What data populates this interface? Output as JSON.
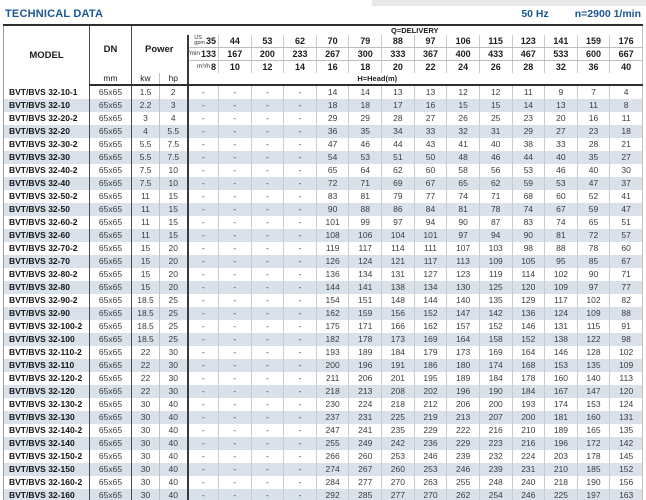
{
  "header": {
    "title": "TECHNICAL DATA",
    "frequency": "50 Hz",
    "speed": "n=2900 1/min"
  },
  "table": {
    "columns": {
      "model": "MODEL",
      "dn": "DN",
      "power": "Power",
      "delivery": "Q=DELIVERY",
      "head": "H=Head(m)",
      "dn_unit": "mm",
      "kw": "kw",
      "hp": "hp"
    },
    "units": {
      "us": "US",
      "gpm": "gpm",
      "lmin": "l/min",
      "m3h": "m³/h"
    },
    "gpm": [
      "35",
      "44",
      "53",
      "62",
      "70",
      "79",
      "88",
      "97",
      "106",
      "115",
      "123",
      "141",
      "159",
      "176"
    ],
    "lmin": [
      "133",
      "167",
      "200",
      "233",
      "267",
      "300",
      "333",
      "367",
      "400",
      "433",
      "467",
      "533",
      "600",
      "667"
    ],
    "m3h": [
      "8",
      "10",
      "12",
      "14",
      "16",
      "18",
      "20",
      "22",
      "24",
      "26",
      "28",
      "32",
      "36",
      "40"
    ],
    "rows": [
      {
        "model": "BVT/BVS 32-10-1",
        "dn": "65x65",
        "kw": "1.5",
        "hp": "2",
        "values": [
          "-",
          "-",
          "-",
          "-",
          "14",
          "14",
          "13",
          "13",
          "12",
          "12",
          "11",
          "9",
          "7",
          "4"
        ]
      },
      {
        "model": "BVT/BVS 32-10",
        "dn": "65x65",
        "kw": "2.2",
        "hp": "3",
        "values": [
          "-",
          "-",
          "-",
          "-",
          "18",
          "18",
          "17",
          "16",
          "15",
          "15",
          "14",
          "13",
          "11",
          "8"
        ]
      },
      {
        "model": "BVT/BVS 32-20-2",
        "dn": "65x65",
        "kw": "3",
        "hp": "4",
        "values": [
          "-",
          "-",
          "-",
          "-",
          "29",
          "29",
          "28",
          "27",
          "26",
          "25",
          "23",
          "20",
          "16",
          "11"
        ]
      },
      {
        "model": "BVT/BVS 32-20",
        "dn": "65x65",
        "kw": "4",
        "hp": "5.5",
        "values": [
          "-",
          "-",
          "-",
          "-",
          "36",
          "35",
          "34",
          "33",
          "32",
          "31",
          "29",
          "27",
          "23",
          "18"
        ]
      },
      {
        "model": "BVT/BVS 32-30-2",
        "dn": "65x65",
        "kw": "5.5",
        "hp": "7.5",
        "values": [
          "-",
          "-",
          "-",
          "-",
          "47",
          "46",
          "44",
          "43",
          "41",
          "40",
          "38",
          "33",
          "28",
          "21"
        ]
      },
      {
        "model": "BVT/BVS 32-30",
        "dn": "65x65",
        "kw": "5.5",
        "hp": "7.5",
        "values": [
          "-",
          "-",
          "-",
          "-",
          "54",
          "53",
          "51",
          "50",
          "48",
          "46",
          "44",
          "40",
          "35",
          "27"
        ]
      },
      {
        "model": "BVT/BVS 32-40-2",
        "dn": "65x65",
        "kw": "7.5",
        "hp": "10",
        "values": [
          "-",
          "-",
          "-",
          "-",
          "65",
          "64",
          "62",
          "60",
          "58",
          "56",
          "53",
          "46",
          "40",
          "30"
        ]
      },
      {
        "model": "BVT/BVS 32-40",
        "dn": "65x65",
        "kw": "7.5",
        "hp": "10",
        "values": [
          "-",
          "-",
          "-",
          "-",
          "72",
          "71",
          "69",
          "67",
          "65",
          "62",
          "59",
          "53",
          "47",
          "37"
        ]
      },
      {
        "model": "BVT/BVS 32-50-2",
        "dn": "65x65",
        "kw": "11",
        "hp": "15",
        "values": [
          "-",
          "-",
          "-",
          "-",
          "83",
          "81",
          "79",
          "77",
          "74",
          "71",
          "68",
          "60",
          "52",
          "41"
        ]
      },
      {
        "model": "BVT/BVS 32-50",
        "dn": "65x65",
        "kw": "11",
        "hp": "15",
        "values": [
          "-",
          "-",
          "-",
          "-",
          "90",
          "88",
          "86",
          "84",
          "81",
          "78",
          "74",
          "67",
          "59",
          "47"
        ]
      },
      {
        "model": "BVT/BVS 32-60-2",
        "dn": "65x65",
        "kw": "11",
        "hp": "15",
        "values": [
          "-",
          "-",
          "-",
          "-",
          "101",
          "99",
          "97",
          "94",
          "90",
          "87",
          "83",
          "74",
          "65",
          "51"
        ]
      },
      {
        "model": "BVT/BVS 32-60",
        "dn": "65x65",
        "kw": "11",
        "hp": "15",
        "values": [
          "-",
          "-",
          "-",
          "-",
          "108",
          "106",
          "104",
          "101",
          "97",
          "94",
          "90",
          "81",
          "72",
          "57"
        ]
      },
      {
        "model": "BVT/BVS 32-70-2",
        "dn": "65x65",
        "kw": "15",
        "hp": "20",
        "values": [
          "-",
          "-",
          "-",
          "-",
          "119",
          "117",
          "114",
          "111",
          "107",
          "103",
          "98",
          "88",
          "78",
          "60"
        ]
      },
      {
        "model": "BVT/BVS 32-70",
        "dn": "65x65",
        "kw": "15",
        "hp": "20",
        "values": [
          "-",
          "-",
          "-",
          "-",
          "126",
          "124",
          "121",
          "117",
          "113",
          "109",
          "105",
          "95",
          "85",
          "67"
        ]
      },
      {
        "model": "BVT/BVS 32-80-2",
        "dn": "65x65",
        "kw": "15",
        "hp": "20",
        "values": [
          "-",
          "-",
          "-",
          "-",
          "136",
          "134",
          "131",
          "127",
          "123",
          "119",
          "114",
          "102",
          "90",
          "71"
        ]
      },
      {
        "model": "BVT/BVS 32-80",
        "dn": "65x65",
        "kw": "15",
        "hp": "20",
        "values": [
          "-",
          "-",
          "-",
          "-",
          "144",
          "141",
          "138",
          "134",
          "130",
          "125",
          "120",
          "109",
          "97",
          "77"
        ]
      },
      {
        "model": "BVT/BVS 32-90-2",
        "dn": "65x65",
        "kw": "18.5",
        "hp": "25",
        "values": [
          "-",
          "-",
          "-",
          "-",
          "154",
          "151",
          "148",
          "144",
          "140",
          "135",
          "129",
          "117",
          "102",
          "82"
        ]
      },
      {
        "model": "BVT/BVS 32-90",
        "dn": "65x65",
        "kw": "18.5",
        "hp": "25",
        "values": [
          "-",
          "-",
          "-",
          "-",
          "162",
          "159",
          "156",
          "152",
          "147",
          "142",
          "136",
          "124",
          "109",
          "88"
        ]
      },
      {
        "model": "BVT/BVS 32-100-2",
        "dn": "65x65",
        "kw": "18.5",
        "hp": "25",
        "values": [
          "-",
          "-",
          "-",
          "-",
          "175",
          "171",
          "166",
          "162",
          "157",
          "152",
          "146",
          "131",
          "115",
          "91"
        ]
      },
      {
        "model": "BVT/BVS 32-100",
        "dn": "65x65",
        "kw": "18.5",
        "hp": "25",
        "values": [
          "-",
          "-",
          "-",
          "-",
          "182",
          "178",
          "173",
          "169",
          "164",
          "158",
          "152",
          "138",
          "122",
          "98"
        ]
      },
      {
        "model": "BVT/BVS 32-110-2",
        "dn": "65x65",
        "kw": "22",
        "hp": "30",
        "values": [
          "-",
          "-",
          "-",
          "-",
          "193",
          "189",
          "184",
          "179",
          "173",
          "169",
          "164",
          "146",
          "128",
          "102"
        ]
      },
      {
        "model": "BVT/BVS 32-110",
        "dn": "65x65",
        "kw": "22",
        "hp": "30",
        "values": [
          "-",
          "-",
          "-",
          "-",
          "200",
          "196",
          "191",
          "186",
          "180",
          "174",
          "168",
          "153",
          "135",
          "109"
        ]
      },
      {
        "model": "BVT/BVS 32-120-2",
        "dn": "65x65",
        "kw": "22",
        "hp": "30",
        "values": [
          "-",
          "-",
          "-",
          "-",
          "211",
          "206",
          "201",
          "195",
          "189",
          "184",
          "178",
          "160",
          "140",
          "113"
        ]
      },
      {
        "model": "BVT/BVS 32-120",
        "dn": "65x65",
        "kw": "22",
        "hp": "30",
        "values": [
          "-",
          "-",
          "-",
          "-",
          "218",
          "213",
          "208",
          "202",
          "196",
          "190",
          "184",
          "167",
          "147",
          "120"
        ]
      },
      {
        "model": "BVT/BVS 32-130-2",
        "dn": "65x65",
        "kw": "30",
        "hp": "40",
        "values": [
          "-",
          "-",
          "-",
          "-",
          "230",
          "224",
          "218",
          "212",
          "206",
          "200",
          "193",
          "174",
          "153",
          "124"
        ]
      },
      {
        "model": "BVT/BVS 32-130",
        "dn": "65x65",
        "kw": "30",
        "hp": "40",
        "values": [
          "-",
          "-",
          "-",
          "-",
          "237",
          "231",
          "225",
          "219",
          "213",
          "207",
          "200",
          "181",
          "160",
          "131"
        ]
      },
      {
        "model": "BVT/BVS 32-140-2",
        "dn": "65x65",
        "kw": "30",
        "hp": "40",
        "values": [
          "-",
          "-",
          "-",
          "-",
          "247",
          "241",
          "235",
          "229",
          "222",
          "216",
          "210",
          "189",
          "165",
          "135"
        ]
      },
      {
        "model": "BVT/BVS 32-140",
        "dn": "65x65",
        "kw": "30",
        "hp": "40",
        "values": [
          "-",
          "-",
          "-",
          "-",
          "255",
          "249",
          "242",
          "236",
          "229",
          "223",
          "216",
          "196",
          "172",
          "142"
        ]
      },
      {
        "model": "BVT/BVS 32-150-2",
        "dn": "65x65",
        "kw": "30",
        "hp": "40",
        "values": [
          "-",
          "-",
          "-",
          "-",
          "266",
          "260",
          "253",
          "246",
          "239",
          "232",
          "224",
          "203",
          "178",
          "145"
        ]
      },
      {
        "model": "BVT/BVS 32-150",
        "dn": "65x65",
        "kw": "30",
        "hp": "40",
        "values": [
          "-",
          "-",
          "-",
          "-",
          "274",
          "267",
          "260",
          "253",
          "246",
          "239",
          "231",
          "210",
          "185",
          "152"
        ]
      },
      {
        "model": "BVT/BVS 32-160-2",
        "dn": "65x65",
        "kw": "30",
        "hp": "40",
        "values": [
          "-",
          "-",
          "-",
          "-",
          "284",
          "277",
          "270",
          "263",
          "255",
          "248",
          "240",
          "218",
          "190",
          "156"
        ]
      },
      {
        "model": "BVT/BVS 32-160",
        "dn": "65x65",
        "kw": "30",
        "hp": "40",
        "values": [
          "-",
          "-",
          "-",
          "-",
          "292",
          "285",
          "277",
          "270",
          "262",
          "254",
          "246",
          "225",
          "197",
          "163"
        ]
      }
    ]
  }
}
